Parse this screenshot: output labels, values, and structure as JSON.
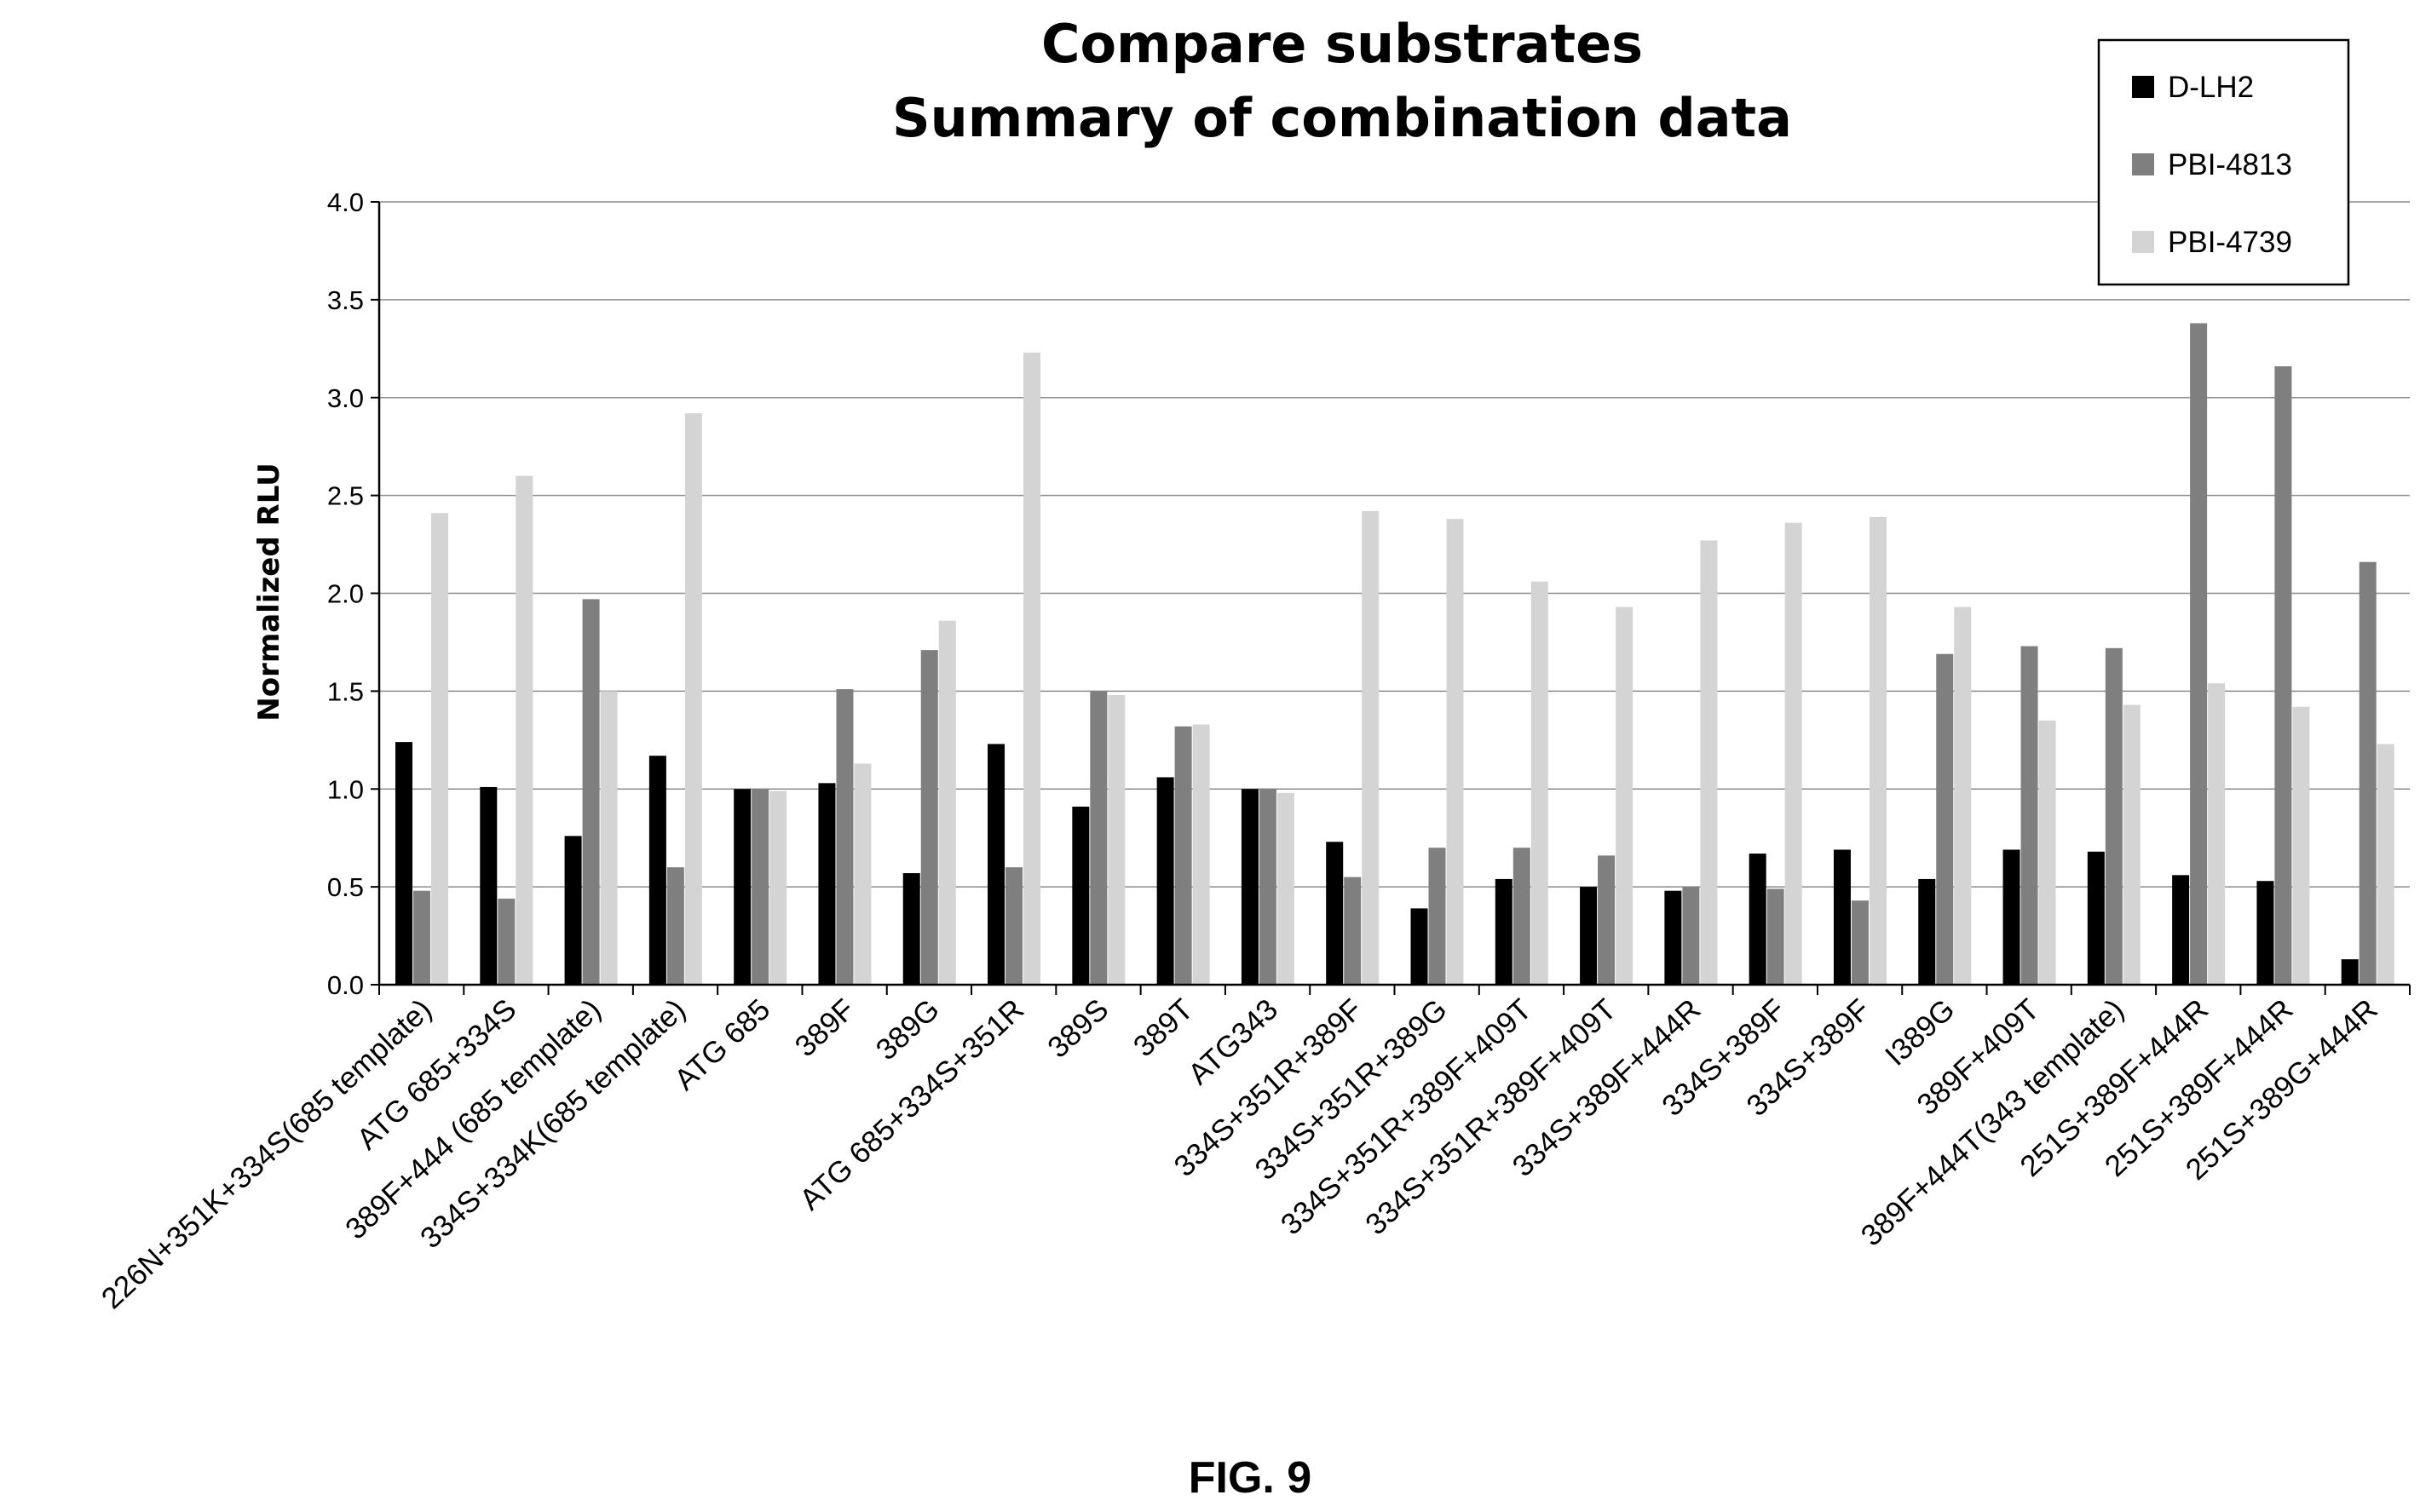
{
  "chart_data": {
    "type": "bar",
    "title": "Compare substrates",
    "subtitle": "Summary of combination data",
    "xlabel": "",
    "ylabel": "Normalized RLU",
    "ylim": [
      0,
      4.0
    ],
    "yticks": [
      "0.0",
      "0.5",
      "1.0",
      "1.5",
      "2.0",
      "2.5",
      "3.0",
      "3.5",
      "4.0"
    ],
    "grid": true,
    "legend_position": "top-right",
    "categories": [
      "226N+351K+334S(685 template)",
      "ATG 685+334S",
      "389F+444 (685 template)",
      "334S+334K(685 template)",
      "ATG 685",
      "389F",
      "389G",
      "ATG 685+334S+351R",
      "389S",
      "389T",
      "ATG343",
      "334S+351R+389F",
      "334S+351R+389G",
      "334S+351R+389F+409T",
      "334S+351R+389F+409T",
      "334S+389F+444R",
      "334S+389F",
      "334S+389F",
      "I389G",
      "389F+409T",
      "389F+444T(343 template)",
      "251S+389F+444R",
      "251S+389F+444R",
      "251S+389G+444R"
    ],
    "series": [
      {
        "name": "D-LH2",
        "color": "#000000",
        "values": [
          1.24,
          1.01,
          0.76,
          1.17,
          1.0,
          1.03,
          0.57,
          1.23,
          0.91,
          1.06,
          1.0,
          0.73,
          0.39,
          0.54,
          0.5,
          0.48,
          0.67,
          0.69,
          0.54,
          0.69,
          0.68,
          0.56,
          0.53,
          0.13
        ]
      },
      {
        "name": "PBI-4813",
        "color": "#7f7f7f",
        "values": [
          0.48,
          0.44,
          1.97,
          0.6,
          1.0,
          1.51,
          1.71,
          0.6,
          1.5,
          1.32,
          1.0,
          0.55,
          0.7,
          0.7,
          0.66,
          0.5,
          0.49,
          0.43,
          1.69,
          1.73,
          1.72,
          3.38,
          3.16,
          2.16
        ]
      },
      {
        "name": "PBI-4739",
        "color": "#d4d4d4",
        "values": [
          2.41,
          2.6,
          1.5,
          2.92,
          0.99,
          1.13,
          1.86,
          3.23,
          1.48,
          1.33,
          0.98,
          2.42,
          2.38,
          2.06,
          1.93,
          2.27,
          2.36,
          2.39,
          1.93,
          1.35,
          1.43,
          1.54,
          1.42,
          1.23
        ]
      }
    ]
  },
  "figure_label": "FIG. 9"
}
